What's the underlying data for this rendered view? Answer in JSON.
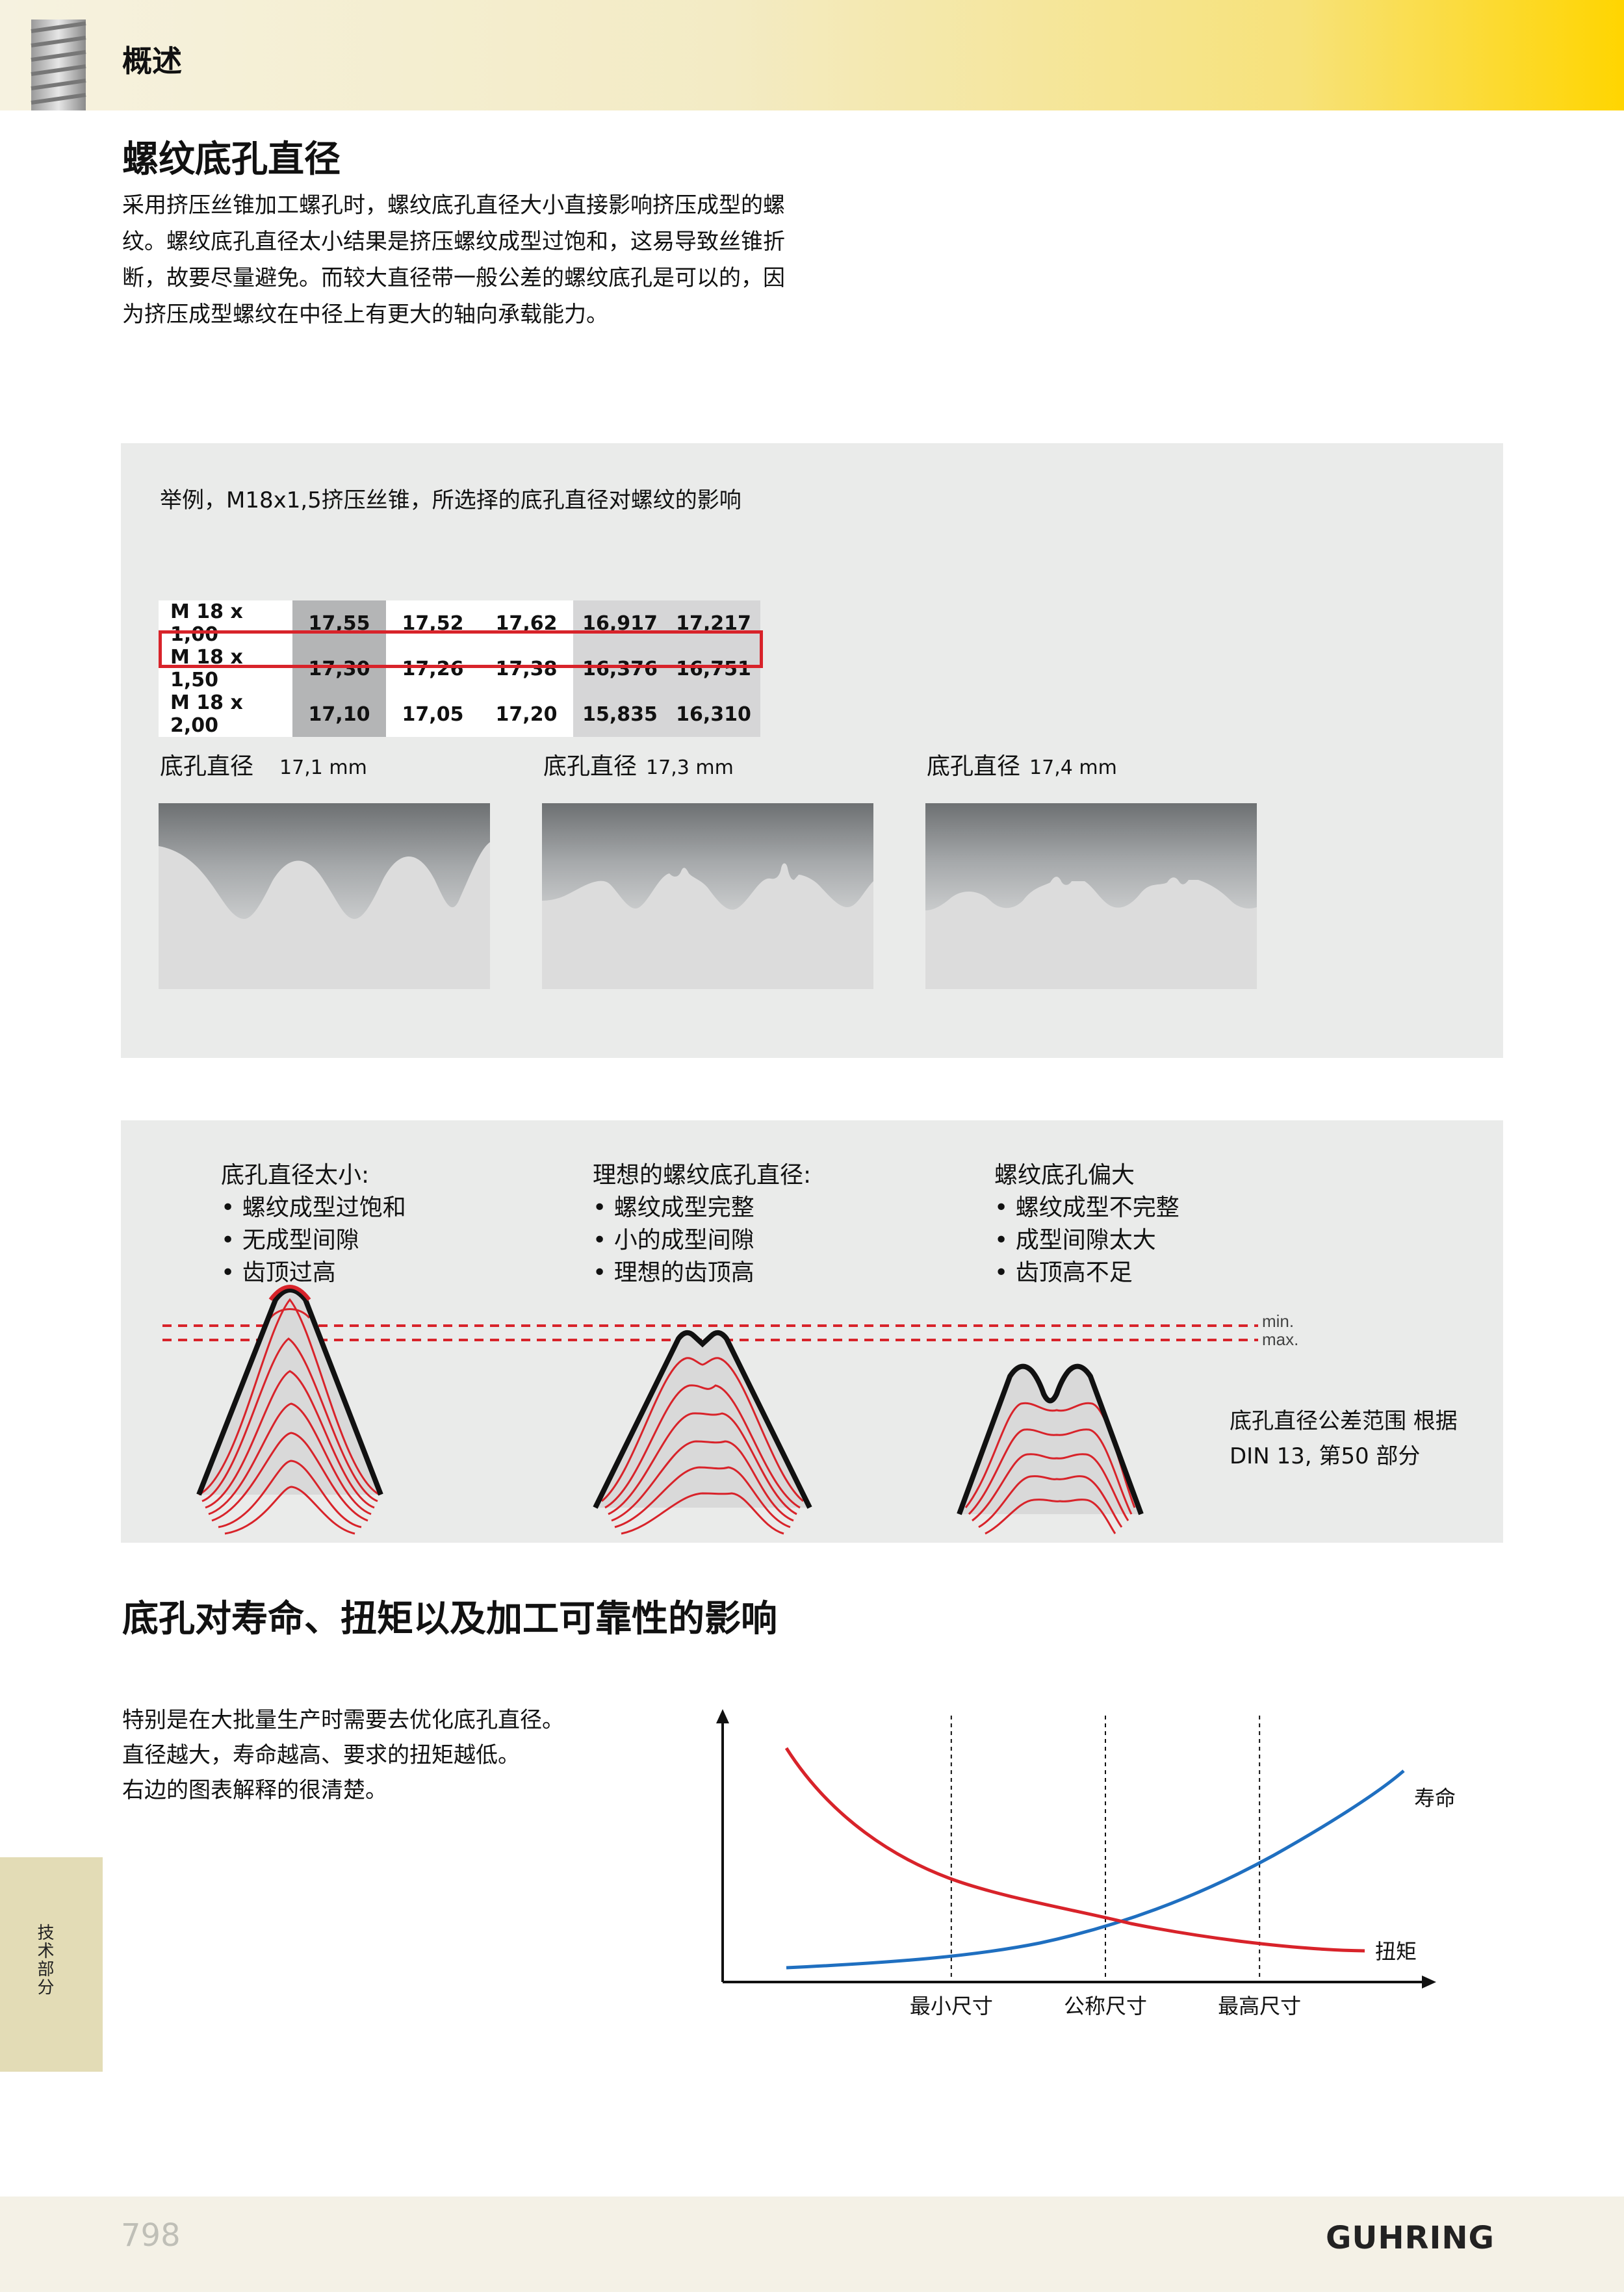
{
  "header": {
    "title": "概述"
  },
  "section1": {
    "title": "螺纹底孔直径",
    "body": "采用挤压丝锥加工螺孔时，螺纹底孔直径大小直接影响挤压成型的螺纹。螺纹底孔直径太小结果是挤压螺纹成型过饱和，这易导致丝锥折断，故要尽量避免。而较大直径带一般公差的螺纹底孔是可以的，因为挤压成型螺纹在中径上有更大的轴向承载能力。"
  },
  "panel1": {
    "caption": "举例，M18x1,5挤压丝锥，所选择的底孔直径对螺纹的影响",
    "table": [
      [
        "M 18 x 1,00",
        "17,55",
        "17,52",
        "17,62",
        "16,917",
        "17,217"
      ],
      [
        "M 18 x 1,50",
        "17,30",
        "17,26",
        "17,38",
        "16,376",
        "16,751"
      ],
      [
        "M 18 x 2,00",
        "17,10",
        "17,05",
        "17,20",
        "15,835",
        "16,310"
      ]
    ],
    "highlighted_row": 1,
    "diameters": [
      {
        "label": "底孔直径",
        "value": "17,1 mm"
      },
      {
        "label": "底孔直径",
        "value": "17,3 mm"
      },
      {
        "label": "底孔直径",
        "value": "17,4 mm"
      }
    ]
  },
  "panel2": {
    "columns": [
      {
        "heading": "底孔直径太小:",
        "items": [
          "螺纹成型过饱和",
          "无成型间隙",
          "齿顶过高"
        ]
      },
      {
        "heading": "理想的螺纹底孔直径:",
        "items": [
          "螺纹成型完整",
          "小的成型间隙",
          "理想的齿顶高"
        ]
      },
      {
        "heading": "螺纹底孔偏大",
        "items": [
          "螺纹成型不完整",
          "成型间隙太大",
          "齿顶高不足"
        ]
      }
    ],
    "min_label": "min.",
    "max_label": "max.",
    "note_line1": "底孔直径公差范围 根据",
    "note_line2": "DIN 13, 第50 部分"
  },
  "section2": {
    "title": "底孔对寿命、扭矩以及加工可靠性的影响",
    "lines": [
      "特别是在大批量生产时需要去优化底孔直径。",
      "直径越大，寿命越高、要求的扭矩越低。",
      "右边的图表解释的很清楚。"
    ]
  },
  "chart_data": {
    "type": "line",
    "categories": [
      "最小尺寸",
      "公称尺寸",
      "最高尺寸"
    ],
    "series": [
      {
        "name": "寿命",
        "color": "#1f6fc0"
      },
      {
        "name": "扭矩",
        "color": "#d8232a"
      }
    ],
    "trend": "寿命 rises with hole diameter, 扭矩 falls; the curves cross at 公称尺寸",
    "ylabel": "",
    "xlabel": ""
  },
  "side_tab": {
    "label": "技术部分"
  },
  "footer": {
    "page_number": "798",
    "logo": "GUHRING"
  }
}
